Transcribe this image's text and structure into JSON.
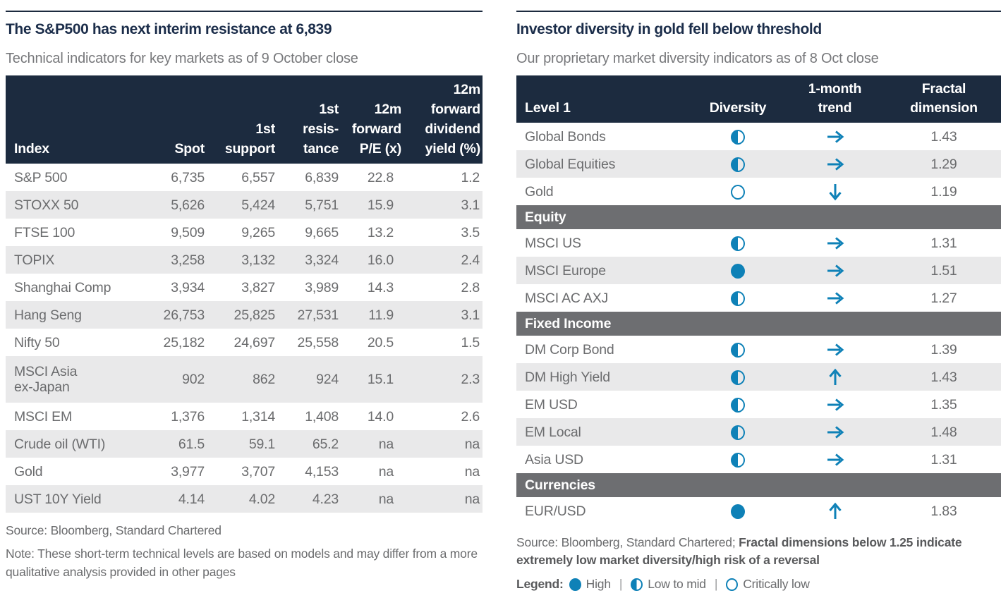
{
  "colors": {
    "navy": "#1C2B3F",
    "title_navy": "#1B2D4A",
    "accent_blue": "#0E81B7",
    "section_gray": "#6D6E71",
    "row_alt_gray": "#E9E9EA",
    "text_gray": "#6B6C6E"
  },
  "left_panel": {
    "title": "The S&P500 has next interim resistance at 6,839",
    "subtitle": "Technical indicators for key markets as of 9 October close",
    "header": [
      "Index",
      "Spot",
      "1st\nsupport",
      "1st\nresis-\ntance",
      "12m\nforward\nP/E (x)",
      "12m\nforward\ndividend\nyield (%)"
    ],
    "rows": [
      [
        "S&P 500",
        "6,735",
        "6,557",
        "6,839",
        "22.8",
        "1.2"
      ],
      [
        "STOXX 50",
        "5,626",
        "5,424",
        "5,751",
        "15.9",
        "3.1"
      ],
      [
        "FTSE 100",
        "9,509",
        "9,265",
        "9,665",
        "13.2",
        "3.5"
      ],
      [
        "TOPIX",
        "3,258",
        "3,132",
        "3,324",
        "16.0",
        "2.4"
      ],
      [
        "Shanghai Comp",
        "3,934",
        "3,827",
        "3,989",
        "14.3",
        "2.8"
      ],
      [
        "Hang Seng",
        "26,753",
        "25,825",
        "27,531",
        "11.9",
        "3.1"
      ],
      [
        "Nifty 50",
        "25,182",
        "24,697",
        "25,558",
        "20.5",
        "1.5"
      ],
      [
        "MSCI Asia\nex-Japan",
        "902",
        "862",
        "924",
        "15.1",
        "2.3"
      ],
      [
        "MSCI EM",
        "1,376",
        "1,314",
        "1,408",
        "14.0",
        "2.6"
      ],
      [
        "Crude oil (WTI)",
        "61.5",
        "59.1",
        "65.2",
        "na",
        "na"
      ],
      [
        "Gold",
        "3,977",
        "3,707",
        "4,153",
        "na",
        "na"
      ],
      [
        "UST 10Y Yield",
        "4.14",
        "4.02",
        "4.23",
        "na",
        "na"
      ]
    ],
    "source": "Source: Bloomberg, Standard Chartered",
    "note": "Note: These short-term technical levels are based on models and may differ from a more qualitative analysis provided in other pages"
  },
  "right_panel": {
    "title": "Investor diversity in gold fell below threshold",
    "subtitle": "Our proprietary market diversity indicators as of 8 Oct close",
    "header": [
      "Level 1",
      "Diversity",
      "1-month\ntrend",
      "Fractal\ndimension"
    ],
    "sections": [
      {
        "name": "",
        "rows": [
          {
            "label": "Global Bonds",
            "diversity": "low-mid",
            "trend": "right",
            "fractal": "1.43"
          },
          {
            "label": "Global Equities",
            "diversity": "low-mid",
            "trend": "right",
            "fractal": "1.29"
          },
          {
            "label": "Gold",
            "diversity": "critically-low",
            "trend": "down",
            "fractal": "1.19"
          }
        ]
      },
      {
        "name": "Equity",
        "rows": [
          {
            "label": "MSCI US",
            "diversity": "low-mid",
            "trend": "right",
            "fractal": "1.31"
          },
          {
            "label": "MSCI Europe",
            "diversity": "high",
            "trend": "right",
            "fractal": "1.51"
          },
          {
            "label": "MSCI AC AXJ",
            "diversity": "low-mid",
            "trend": "right",
            "fractal": "1.27"
          }
        ]
      },
      {
        "name": "Fixed Income",
        "rows": [
          {
            "label": "DM Corp Bond",
            "diversity": "low-mid",
            "trend": "right",
            "fractal": "1.39"
          },
          {
            "label": "DM High Yield",
            "diversity": "low-mid",
            "trend": "up",
            "fractal": "1.43"
          },
          {
            "label": "EM USD",
            "diversity": "low-mid",
            "trend": "right",
            "fractal": "1.35"
          },
          {
            "label": "EM Local",
            "diversity": "low-mid",
            "trend": "right",
            "fractal": "1.48"
          },
          {
            "label": "Asia USD",
            "diversity": "low-mid",
            "trend": "right",
            "fractal": "1.31"
          }
        ]
      },
      {
        "name": "Currencies",
        "rows": [
          {
            "label": "EUR/USD",
            "diversity": "high",
            "trend": "up",
            "fractal": "1.83"
          }
        ]
      }
    ],
    "source_normal": "Source: Bloomberg, Standard Chartered; ",
    "source_bold": "Fractal dimensions below 1.25 indicate extremely low market diversity/high risk of a reversal",
    "legend": {
      "label": "Legend:",
      "separator": "|",
      "items": [
        {
          "icon": "high",
          "label": "High"
        },
        {
          "icon": "low-mid",
          "label": "Low to mid"
        },
        {
          "icon": "critically-low",
          "label": "Critically low"
        }
      ]
    }
  }
}
